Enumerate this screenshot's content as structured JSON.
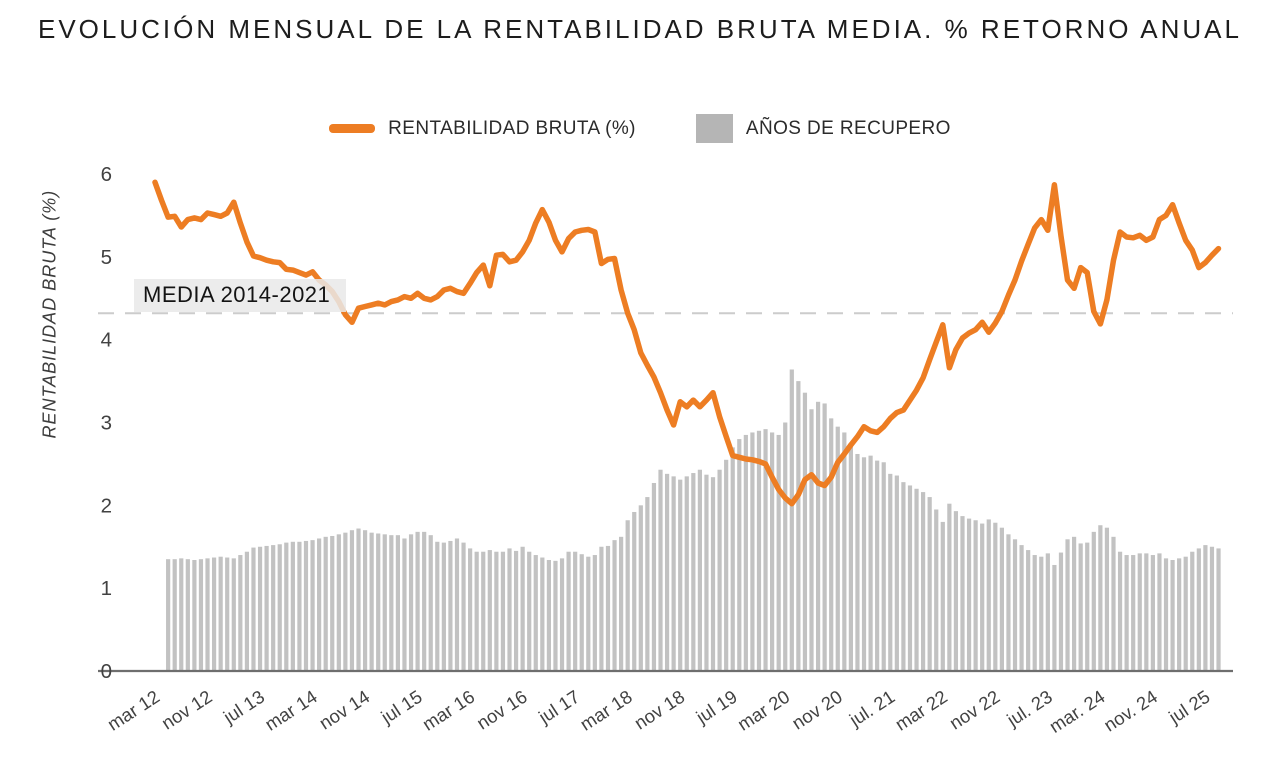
{
  "title": "EVOLUCIÓN MENSUAL DE LA RENTABILIDAD BRUTA MEDIA. % RETORNO ANUAL",
  "legend": {
    "line_series_label": "RENTABILIDAD BRUTA (%)",
    "bar_series_label": "AÑOS DE RECUPERO"
  },
  "y_axis": {
    "title": "RENTABILIDAD BRUTA (%)",
    "tick_labels": [
      "0",
      "1",
      "2",
      "3",
      "4",
      "5",
      "6"
    ],
    "tick_values": [
      0,
      1,
      2,
      3,
      4,
      5,
      6
    ]
  },
  "x_axis": {
    "tick_labels": [
      "mar 12",
      "nov 12",
      "jul 13",
      "mar 14",
      "nov 14",
      "jul 15",
      "mar 16",
      "nov 16",
      "jul 17",
      "mar 18",
      "nov 18",
      "jul 19",
      "mar 20",
      "nov 20",
      "jul. 21",
      "mar 22",
      "nov 22",
      "jul. 23",
      "mar. 24",
      "nov. 24",
      "jul 25"
    ],
    "tick_every_n_months": 8
  },
  "media_annotation": {
    "label": "MEDIA 2014-2021",
    "value": 4.32
  },
  "colors": {
    "line": "#ED7D23",
    "bars": "#C2C2C2",
    "legend_box": "#B5B5B5",
    "dashed_line": "#CCCCCC",
    "axis_line": "#6E6E6E",
    "tick_text": "#424242",
    "title_text": "#1D1D1D"
  },
  "chart_data": {
    "type": "combo-line-bar",
    "title": "EVOLUCIÓN MENSUAL DE LA RENTABILIDAD BRUTA MEDIA. % RETORNO ANUAL",
    "ylabel": "RENTABILIDAD BRUTA (%)",
    "ylim": [
      0,
      6
    ],
    "x_start_month": "mar 12",
    "x_frequency": "monthly",
    "x_tick_labels": [
      "mar 12",
      "nov 12",
      "jul 13",
      "mar 14",
      "nov 14",
      "jul 15",
      "mar 16",
      "nov 16",
      "jul 17",
      "mar 18",
      "nov 18",
      "jul 19",
      "mar 20",
      "nov 20",
      "jul. 21",
      "mar 22",
      "nov 22",
      "jul. 23",
      "mar. 24",
      "nov. 24",
      "jul 25"
    ],
    "legend_position": "top-center",
    "grid": false,
    "annotation_line": {
      "label": "MEDIA 2014-2021",
      "value": 4.32,
      "style": "dashed"
    },
    "series": [
      {
        "name": "RENTABILIDAD BRUTA (%)",
        "type": "line",
        "color": "#ED7D23",
        "start_index": 0,
        "values": [
          5.9,
          5.68,
          5.48,
          5.49,
          5.36,
          5.45,
          5.47,
          5.45,
          5.53,
          5.51,
          5.49,
          5.53,
          5.66,
          5.41,
          5.18,
          5.01,
          4.99,
          4.96,
          4.94,
          4.93,
          4.85,
          4.84,
          4.81,
          4.78,
          4.82,
          4.72,
          4.66,
          4.58,
          4.46,
          4.3,
          4.21,
          4.38,
          4.4,
          4.42,
          4.44,
          4.42,
          4.46,
          4.48,
          4.52,
          4.5,
          4.56,
          4.5,
          4.48,
          4.52,
          4.6,
          4.62,
          4.58,
          4.56,
          4.68,
          4.81,
          4.9,
          4.65,
          5.02,
          5.03,
          4.94,
          4.96,
          5.06,
          5.2,
          5.41,
          5.57,
          5.42,
          5.2,
          5.06,
          5.22,
          5.3,
          5.32,
          5.33,
          5.3,
          4.92,
          4.97,
          4.98,
          4.6,
          4.32,
          4.12,
          3.84,
          3.69,
          3.55,
          3.36,
          3.15,
          2.97,
          3.25,
          3.19,
          3.27,
          3.19,
          3.27,
          3.36,
          3.07,
          2.83,
          2.6,
          2.58,
          2.56,
          2.55,
          2.53,
          2.5,
          2.34,
          2.19,
          2.09,
          2.02,
          2.13,
          2.31,
          2.37,
          2.27,
          2.24,
          2.34,
          2.52,
          2.62,
          2.73,
          2.83,
          2.95,
          2.9,
          2.88,
          2.95,
          3.05,
          3.12,
          3.15,
          3.27,
          3.39,
          3.54,
          3.76,
          3.97,
          4.18,
          3.66,
          3.88,
          4.02,
          4.08,
          4.12,
          4.21,
          4.09,
          4.2,
          4.34,
          4.54,
          4.72,
          4.95,
          5.15,
          5.35,
          5.45,
          5.32,
          5.87,
          5.25,
          4.72,
          4.62,
          4.87,
          4.81,
          4.34,
          4.19,
          4.48,
          4.96,
          5.3,
          5.24,
          5.23,
          5.26,
          5.2,
          5.24,
          5.45,
          5.5,
          5.63,
          5.41,
          5.2,
          5.08,
          4.87,
          4.93,
          5.02,
          5.1
        ]
      },
      {
        "name": "AÑOS DE RECUPERO",
        "type": "bar",
        "color": "#C2C2C2",
        "start_index": 2,
        "values": [
          1.35,
          1.35,
          1.36,
          1.35,
          1.34,
          1.35,
          1.36,
          1.37,
          1.38,
          1.37,
          1.36,
          1.4,
          1.44,
          1.49,
          1.5,
          1.51,
          1.52,
          1.53,
          1.55,
          1.56,
          1.56,
          1.57,
          1.58,
          1.6,
          1.62,
          1.63,
          1.65,
          1.67,
          1.7,
          1.72,
          1.7,
          1.67,
          1.66,
          1.65,
          1.64,
          1.64,
          1.6,
          1.65,
          1.68,
          1.68,
          1.64,
          1.56,
          1.55,
          1.57,
          1.6,
          1.55,
          1.48,
          1.44,
          1.44,
          1.46,
          1.44,
          1.44,
          1.48,
          1.45,
          1.5,
          1.44,
          1.4,
          1.37,
          1.34,
          1.33,
          1.36,
          1.44,
          1.44,
          1.41,
          1.38,
          1.4,
          1.5,
          1.51,
          1.58,
          1.62,
          1.82,
          1.92,
          2.0,
          2.1,
          2.27,
          2.43,
          2.38,
          2.35,
          2.31,
          2.35,
          2.39,
          2.43,
          2.37,
          2.34,
          2.43,
          2.55,
          2.7,
          2.8,
          2.85,
          2.88,
          2.9,
          2.92,
          2.88,
          2.85,
          3.0,
          3.64,
          3.5,
          3.36,
          3.16,
          3.25,
          3.23,
          3.05,
          2.95,
          2.88,
          2.73,
          2.62,
          2.58,
          2.6,
          2.54,
          2.52,
          2.38,
          2.36,
          2.28,
          2.24,
          2.2,
          2.16,
          2.1,
          1.95,
          1.8,
          2.02,
          1.93,
          1.87,
          1.84,
          1.82,
          1.78,
          1.83,
          1.79,
          1.73,
          1.65,
          1.59,
          1.52,
          1.46,
          1.4,
          1.38,
          1.42,
          1.28,
          1.43,
          1.59,
          1.62,
          1.54,
          1.55,
          1.68,
          1.76,
          1.73,
          1.62,
          1.44,
          1.4,
          1.4,
          1.42,
          1.42,
          1.4,
          1.42,
          1.36,
          1.34,
          1.36,
          1.38,
          1.44,
          1.48,
          1.52,
          1.5,
          1.48
        ]
      }
    ]
  }
}
